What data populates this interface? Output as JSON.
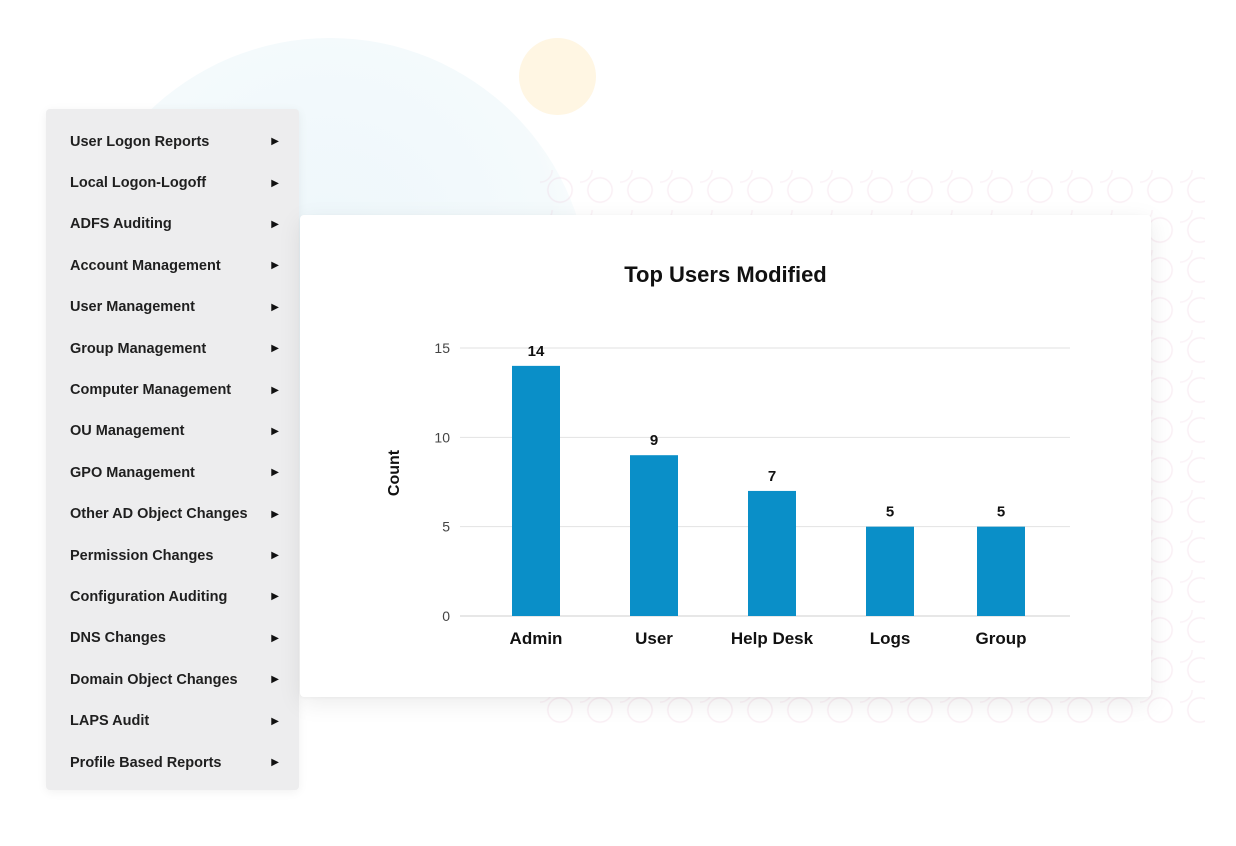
{
  "menu": {
    "items": [
      {
        "label": "User Logon Reports"
      },
      {
        "label": "Local Logon-Logoff"
      },
      {
        "label": "ADFS Auditing"
      },
      {
        "label": "Account Management"
      },
      {
        "label": "User Management"
      },
      {
        "label": "Group Management"
      },
      {
        "label": "Computer Management"
      },
      {
        "label": "OU Management"
      },
      {
        "label": "GPO Management"
      },
      {
        "label": "Other AD Object Changes"
      },
      {
        "label": "Permission Changes"
      },
      {
        "label": "Configuration Auditing"
      },
      {
        "label": "DNS Changes"
      },
      {
        "label": "Domain Object Changes"
      },
      {
        "label": "LAPS Audit"
      },
      {
        "label": "Profile Based Reports"
      }
    ],
    "arrow_icon": "caret-right-icon"
  },
  "chart_data": {
    "type": "bar",
    "title": "Top Users Modified",
    "xlabel": "",
    "ylabel": "Count",
    "categories": [
      "Admin",
      "User",
      "Help Desk",
      "Logs",
      "Group"
    ],
    "values": [
      14,
      9,
      7,
      5,
      5
    ],
    "ylim": [
      0,
      15
    ],
    "yticks": [
      0,
      5,
      10,
      15
    ],
    "grid": true,
    "bar_color": "#0a8fc8"
  }
}
